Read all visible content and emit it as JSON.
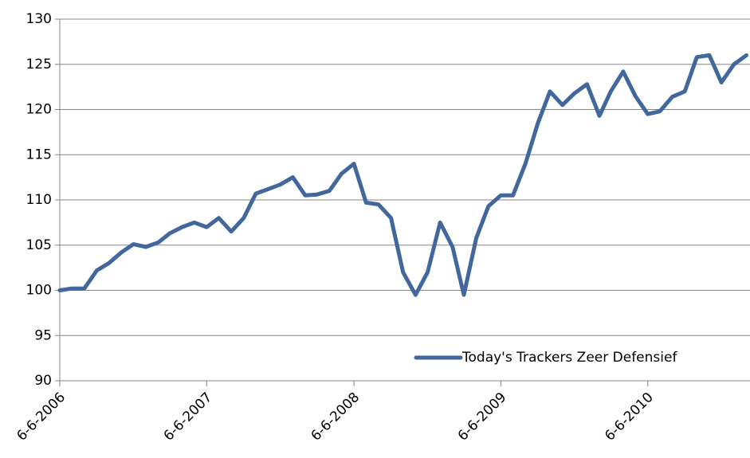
{
  "chart_data": {
    "type": "line",
    "x": [
      "2006-06-06",
      "2006-07-06",
      "2006-08-06",
      "2006-09-06",
      "2006-10-06",
      "2006-11-06",
      "2006-12-06",
      "2007-01-06",
      "2007-02-06",
      "2007-03-06",
      "2007-04-06",
      "2007-05-06",
      "2007-06-06",
      "2007-07-06",
      "2007-08-06",
      "2007-09-06",
      "2007-10-06",
      "2007-11-06",
      "2007-12-06",
      "2008-01-06",
      "2008-02-06",
      "2008-03-06",
      "2008-04-06",
      "2008-05-06",
      "2008-06-06",
      "2008-07-06",
      "2008-08-06",
      "2008-09-06",
      "2008-10-06",
      "2008-11-06",
      "2008-12-06",
      "2009-01-06",
      "2009-02-06",
      "2009-03-06",
      "2009-04-06",
      "2009-05-06",
      "2009-06-06",
      "2009-07-06",
      "2009-08-06",
      "2009-09-06",
      "2009-10-06",
      "2009-11-06",
      "2009-12-06",
      "2010-01-06",
      "2010-02-06",
      "2010-03-06",
      "2010-04-06",
      "2010-05-06",
      "2010-06-06",
      "2010-07-06",
      "2010-08-06",
      "2010-09-06",
      "2010-10-06",
      "2010-11-06",
      "2010-12-06",
      "2011-01-06",
      "2011-02-06"
    ],
    "series": [
      {
        "name": "Today's Trackers Zeer Defensief",
        "color": "#41679c",
        "values": [
          100,
          100.2,
          100.2,
          102.2,
          103,
          104.2,
          105.1,
          104.8,
          105.3,
          106.3,
          107,
          107.5,
          107,
          108,
          106.5,
          108,
          110.7,
          111.2,
          111.7,
          112.5,
          110.5,
          110.6,
          111,
          112.9,
          114,
          109.7,
          109.5,
          108,
          102,
          99.5,
          102,
          107.5,
          104.8,
          99.5,
          105.8,
          109.3,
          110.5,
          110.5,
          114,
          118.5,
          122,
          120.5,
          121.8,
          122.8,
          119.3,
          122,
          124.2,
          121.5,
          119.5,
          119.8,
          121.4,
          122,
          125.8,
          126,
          123,
          125,
          126
        ]
      }
    ],
    "xlim": [
      "2006-06-06",
      "2011-02-15"
    ],
    "xticks": [
      {
        "value": "2006-06-06",
        "label": "6-6-2006"
      },
      {
        "value": "2007-06-06",
        "label": "6-6-2007"
      },
      {
        "value": "2008-06-06",
        "label": "6-6-2008"
      },
      {
        "value": "2009-06-06",
        "label": "6-6-2009"
      },
      {
        "value": "2010-06-06",
        "label": "6-6-2010"
      }
    ],
    "ylim": [
      90,
      130
    ],
    "yticks": [
      90,
      95,
      100,
      105,
      110,
      115,
      120,
      125,
      130
    ],
    "grid": true,
    "legend": "lower right"
  }
}
